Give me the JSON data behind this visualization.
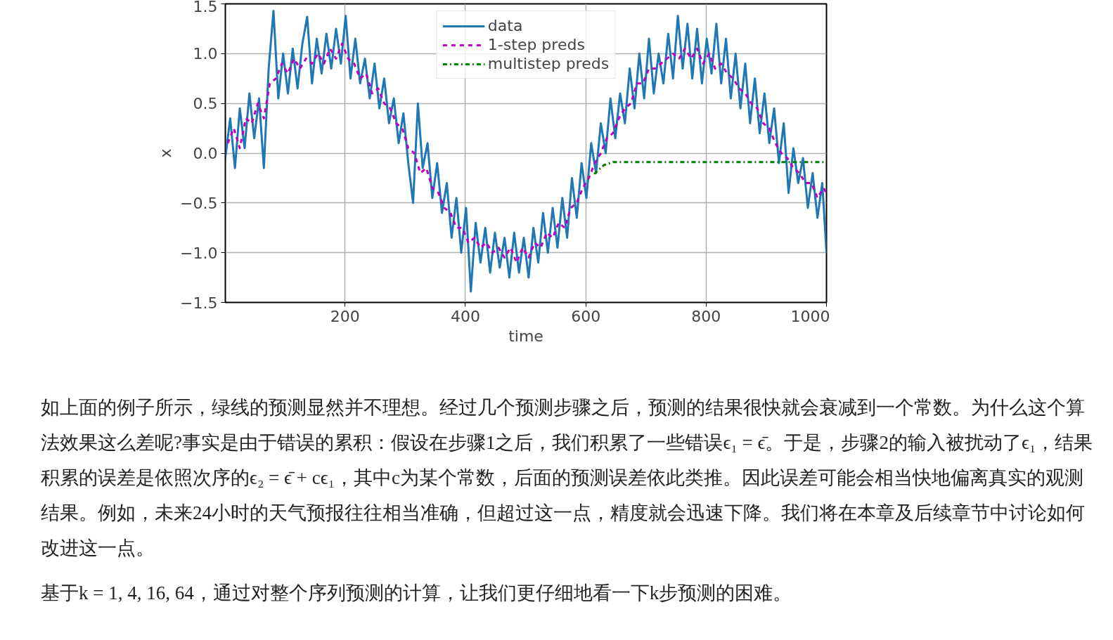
{
  "chart_data": {
    "type": "line",
    "xlabel": "time",
    "ylabel": "x",
    "xlim": [
      1,
      1000
    ],
    "xticks": [
      200,
      400,
      600,
      800,
      1000
    ],
    "ylim": [
      -1.5,
      1.5
    ],
    "yticks": [
      {
        "value": -1.5,
        "label": "−1.5"
      },
      {
        "value": -1.0,
        "label": "−1.0"
      },
      {
        "value": -0.5,
        "label": "−0.5"
      },
      {
        "value": 0.0,
        "label": "0.0"
      },
      {
        "value": 0.5,
        "label": "0.5"
      },
      {
        "value": 1.0,
        "label": "1.0"
      },
      {
        "value": 1.5,
        "label": "1.5"
      }
    ],
    "grid": true,
    "legend": "top",
    "series": [
      {
        "name": "data",
        "color": "#1f77b4",
        "line_style": "solid",
        "x": [
          1,
          9,
          17,
          25,
          33,
          41,
          49,
          57,
          65,
          73,
          81,
          89,
          97,
          105,
          113,
          121,
          129,
          137,
          145,
          153,
          161,
          169,
          177,
          185,
          193,
          201,
          209,
          217,
          225,
          233,
          241,
          249,
          257,
          265,
          273,
          281,
          289,
          297,
          305,
          313,
          321,
          329,
          337,
          345,
          353,
          361,
          369,
          377,
          385,
          393,
          401,
          409,
          417,
          425,
          433,
          441,
          449,
          457,
          465,
          473,
          481,
          489,
          497,
          505,
          513,
          521,
          529,
          537,
          545,
          553,
          561,
          569,
          577,
          585,
          593,
          601,
          609,
          617,
          625,
          633,
          641,
          649,
          657,
          665,
          673,
          681,
          689,
          697,
          705,
          713,
          721,
          729,
          737,
          745,
          753,
          761,
          769,
          777,
          785,
          793,
          801,
          809,
          817,
          825,
          833,
          841,
          849,
          857,
          865,
          873,
          881,
          889,
          897,
          905,
          913,
          921,
          929,
          937,
          945,
          953,
          961,
          969,
          977,
          985,
          993,
          1000
        ],
        "values": [
          -0.05,
          0.35,
          -0.15,
          0.45,
          0.05,
          0.6,
          0.15,
          0.55,
          -0.15,
          0.85,
          1.43,
          0.55,
          1.0,
          0.6,
          1.05,
          0.65,
          1.1,
          1.37,
          0.7,
          1.15,
          0.8,
          1.2,
          0.85,
          1.25,
          0.9,
          1.38,
          0.75,
          1.15,
          0.7,
          0.95,
          0.55,
          0.9,
          0.45,
          0.75,
          0.3,
          0.55,
          0.1,
          0.4,
          -0.1,
          -0.5,
          0.5,
          -0.15,
          0.1,
          -0.45,
          -0.1,
          -0.6,
          -0.3,
          -0.85,
          -0.45,
          -1.0,
          -0.55,
          -1.39,
          -0.7,
          -1.1,
          -0.75,
          -1.2,
          -0.8,
          -1.15,
          -0.85,
          -1.25,
          -0.8,
          -1.2,
          -0.85,
          -1.25,
          -0.75,
          -1.1,
          -0.6,
          -1.0,
          -0.55,
          -0.95,
          -0.45,
          -0.85,
          -0.25,
          -0.65,
          -0.1,
          -0.45,
          0.1,
          -0.2,
          0.3,
          0.0,
          0.55,
          0.15,
          0.6,
          0.3,
          0.85,
          0.45,
          1.0,
          0.55,
          1.15,
          0.6,
          1.0,
          0.7,
          1.2,
          0.75,
          1.38,
          0.85,
          1.3,
          0.75,
          1.25,
          0.7,
          1.15,
          0.8,
          1.3,
          0.7,
          1.15,
          0.55,
          1.0,
          0.45,
          0.9,
          0.3,
          0.75,
          0.2,
          0.6,
          0.1,
          0.45,
          -0.1,
          0.3,
          -0.4,
          0.05,
          -0.3,
          -0.05,
          -0.55,
          -0.2,
          -0.65,
          -0.3,
          -1.0
        ]
      },
      {
        "name": "1-step preds",
        "color": "#bf00bf",
        "line_style": "dashed",
        "x": [
          5,
          15,
          25,
          35,
          45,
          55,
          65,
          75,
          85,
          95,
          105,
          115,
          125,
          135,
          145,
          155,
          165,
          175,
          185,
          195,
          205,
          215,
          225,
          235,
          245,
          255,
          265,
          275,
          285,
          295,
          305,
          315,
          325,
          335,
          345,
          355,
          365,
          375,
          385,
          395,
          405,
          415,
          425,
          435,
          445,
          455,
          465,
          475,
          485,
          495,
          505,
          515,
          525,
          535,
          545,
          555,
          565,
          575,
          585,
          595,
          605,
          615,
          625,
          635,
          645,
          655,
          665,
          675,
          685,
          695,
          705,
          715,
          725,
          735,
          745,
          755,
          765,
          775,
          785,
          795,
          805,
          815,
          825,
          835,
          845,
          855,
          865,
          875,
          885,
          895,
          905,
          915,
          925,
          935,
          945,
          955,
          965,
          975,
          985,
          995,
          1000
        ],
        "values": [
          0.1,
          0.25,
          0.05,
          0.35,
          0.3,
          0.5,
          0.35,
          0.7,
          0.75,
          0.9,
          0.8,
          0.95,
          0.85,
          0.95,
          0.9,
          1.0,
          0.9,
          1.05,
          0.95,
          1.1,
          0.95,
          0.9,
          0.75,
          0.8,
          0.6,
          0.65,
          0.5,
          0.45,
          0.3,
          0.25,
          0.05,
          0.0,
          -0.2,
          -0.15,
          -0.35,
          -0.4,
          -0.55,
          -0.6,
          -0.75,
          -0.75,
          -0.9,
          -0.85,
          -0.95,
          -0.9,
          -1.0,
          -0.95,
          -1.05,
          -0.95,
          -1.1,
          -0.95,
          -1.05,
          -0.9,
          -0.95,
          -0.8,
          -0.85,
          -0.7,
          -0.75,
          -0.55,
          -0.5,
          -0.35,
          -0.25,
          -0.1,
          0.0,
          0.15,
          0.2,
          0.35,
          0.45,
          0.5,
          0.7,
          0.7,
          0.85,
          0.85,
          0.9,
          0.95,
          1.0,
          0.95,
          1.05,
          0.95,
          1.05,
          0.9,
          1.0,
          0.85,
          0.9,
          0.8,
          0.75,
          0.65,
          0.6,
          0.5,
          0.45,
          0.3,
          0.25,
          0.1,
          0.0,
          -0.05,
          -0.15,
          -0.2,
          -0.3,
          -0.3,
          -0.45,
          -0.35,
          -0.4
        ]
      },
      {
        "name": "multistep preds",
        "color": "#008000",
        "line_style": "dashdot",
        "x": [
          614,
          630,
          645,
          1000
        ],
        "values": [
          -0.21,
          -0.12,
          -0.09,
          -0.09
        ]
      }
    ],
    "annotations": [
      "如上面的例子所示，绿线的预测显然并不理想。经过几个预测步骤之后，预测的结果很快就会衰减到一个常数。为什么这个算法效果这么差呢?事实是由于错误的累积：假设在步骤1之后，我们积累了一些错误ϵ₁ = ϵ̄。于是，步骤2的输入被扰动了ϵ₁，结果积累的误差是依照次序的ϵ₂ = ϵ̄ + cϵ₁，其中c为某个常数，后面的预测误差依此类推。因此误差可能会相当快地偏离真实的观测结果。例如，未来24小时的天气预报往往相当准确，但超过这一点，精度就会迅速下降。我们将在本章及后续章节中讨论如何改进这一点。",
      "基于k = 1, 4, 16, 64，通过对整个序列预测的计算，让我们更仔细地看一下k步预测的困难。"
    ]
  }
}
